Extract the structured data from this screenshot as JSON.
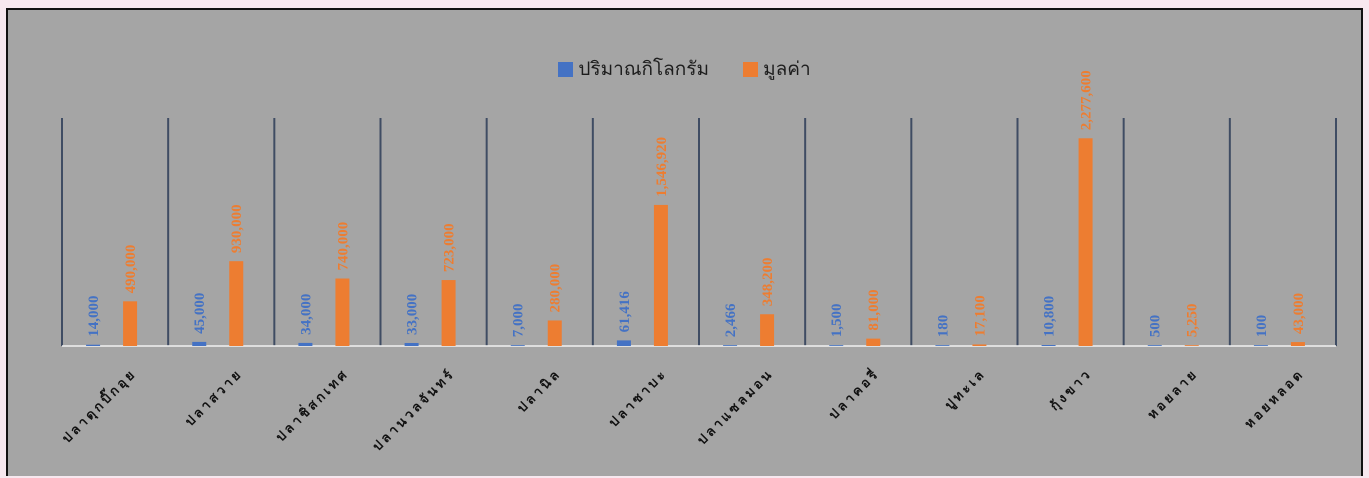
{
  "chart_data": {
    "type": "bar",
    "title": "",
    "xlabel": "",
    "ylabel": "",
    "categories": [
      "ปลาดุกบิ๊กอุย",
      "ปลาสวาย",
      "ปลาชิ่สกเทศ",
      "ปลานวลจันทร์",
      "ปลานิล",
      "ปลาซาบะ",
      "ปลาแซลมอน",
      "ปลาคอรี่",
      "ปูทะเล",
      "กุ้งขาว",
      "หอยลาย",
      "หอยหลอด"
    ],
    "series": [
      {
        "name": "ปริมาณกิโลกรัม",
        "color": "#4472c4",
        "values": [
          14000,
          45000,
          34000,
          33000,
          7000,
          61416,
          2466,
          1500,
          180,
          10800,
          500,
          100
        ],
        "labels": [
          "14,000",
          "45,000",
          "34,000",
          "33,000",
          "7,000",
          "61,416",
          "2,466",
          "1,500",
          "180",
          "10,800",
          "500",
          "100"
        ]
      },
      {
        "name": "มูลค่า",
        "color": "#ed7d31",
        "values": [
          490000,
          930000,
          740000,
          723000,
          280000,
          1546920,
          348200,
          81000,
          17100,
          2277600,
          5250,
          43000
        ],
        "labels": [
          "490,000",
          "930,000",
          "740,000",
          "723,000",
          "280,000",
          "1,546,920",
          "348,200",
          "81,000",
          "17,100",
          "2,277,600",
          "5,250",
          "43,000"
        ]
      }
    ],
    "ylim": [
      0,
      2500000
    ],
    "legend_position": "top",
    "grid": "vertical category separators"
  }
}
